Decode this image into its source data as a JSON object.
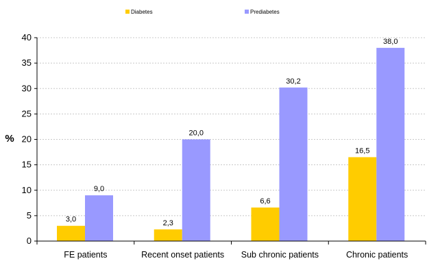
{
  "chart_data": {
    "type": "bar",
    "title": "",
    "xlabel": "",
    "ylabel": "%",
    "categories": [
      "FE patients",
      "Recent onset patients",
      "Sub chronic patients",
      "Chronic patients"
    ],
    "series": [
      {
        "name": "Diabetes",
        "color": "#FFCC00",
        "values": [
          3.0,
          2.3,
          6.6,
          16.5
        ],
        "labels": [
          "3,0",
          "2,3",
          "6,6",
          "16,5"
        ]
      },
      {
        "name": "Prediabetes",
        "color": "#9999FF",
        "values": [
          9.0,
          20.0,
          30.2,
          38.0
        ],
        "labels": [
          "9,0",
          "20,0",
          "30,2",
          "38,0"
        ]
      }
    ],
    "ylim": [
      0,
      40
    ],
    "yticks": [
      "0",
      "5",
      "10",
      "15",
      "20",
      "25",
      "30",
      "35",
      "40"
    ],
    "grid": true,
    "legend_position": "top"
  }
}
